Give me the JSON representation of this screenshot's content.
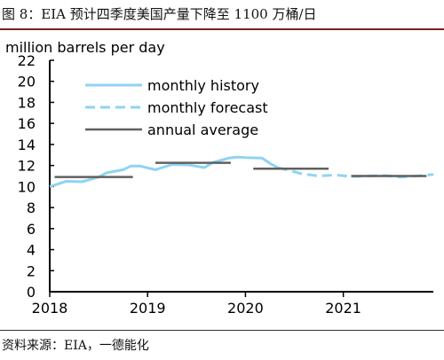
{
  "figure_title": "图  8：EIA 预计四季度美国产量下降至 1100 万桶/日",
  "source_note": "资料来源：EIA，一德能化",
  "colors": {
    "history": "#8fd3f2",
    "forecast": "#8fd3f2",
    "annual": "#606060",
    "axis": "#000000"
  },
  "chart_data": {
    "type": "line",
    "title": "",
    "ylabel": "million barrels per day",
    "xlabel": "",
    "ylim": [
      0,
      22
    ],
    "xlim": [
      2018.0,
      2021.92
    ],
    "yticks": [
      0,
      2,
      4,
      6,
      8,
      10,
      12,
      14,
      16,
      18,
      20,
      22
    ],
    "xticks": [
      2018,
      2019,
      2020,
      2021
    ],
    "xtick_labels": [
      "2018",
      "2019",
      "2020",
      "2021"
    ],
    "grid": false,
    "legend_position": "top-left",
    "series": [
      {
        "name": "monthly history",
        "style": "solid",
        "points": [
          [
            2018.0,
            10.0
          ],
          [
            2018.17,
            10.5
          ],
          [
            2018.33,
            10.45
          ],
          [
            2018.5,
            10.9
          ],
          [
            2018.58,
            11.3
          ],
          [
            2018.75,
            11.6
          ],
          [
            2018.83,
            11.95
          ],
          [
            2018.92,
            11.95
          ],
          [
            2019.08,
            11.6
          ],
          [
            2019.25,
            12.1
          ],
          [
            2019.42,
            12.05
          ],
          [
            2019.58,
            11.8
          ],
          [
            2019.67,
            12.3
          ],
          [
            2019.83,
            12.7
          ],
          [
            2019.92,
            12.8
          ],
          [
            2020.0,
            12.75
          ],
          [
            2020.17,
            12.7
          ],
          [
            2020.25,
            12.2
          ],
          [
            2020.33,
            11.8
          ]
        ]
      },
      {
        "name": "monthly forecast",
        "style": "dashed",
        "points": [
          [
            2020.33,
            11.8
          ],
          [
            2020.42,
            11.6
          ],
          [
            2020.58,
            11.2
          ],
          [
            2020.75,
            11.0
          ],
          [
            2020.92,
            11.1
          ],
          [
            2021.08,
            10.95
          ],
          [
            2021.25,
            11.0
          ],
          [
            2021.42,
            11.05
          ],
          [
            2021.58,
            10.9
          ],
          [
            2021.75,
            11.0
          ],
          [
            2021.92,
            11.15
          ]
        ]
      },
      {
        "name": "annual average",
        "style": "segments",
        "segments": [
          {
            "x": [
              2018.05,
              2018.85
            ],
            "y": 10.9
          },
          {
            "x": [
              2019.08,
              2019.85
            ],
            "y": 12.25
          },
          {
            "x": [
              2020.08,
              2020.85
            ],
            "y": 11.7
          },
          {
            "x": [
              2021.08,
              2021.85
            ],
            "y": 11.0
          }
        ]
      }
    ]
  }
}
